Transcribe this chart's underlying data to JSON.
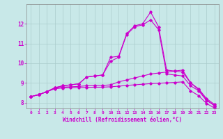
{
  "background_color": "#c8e8e8",
  "plot_bg": "#c8e8e8",
  "line_color": "#cc00cc",
  "grid_color": "#aacccc",
  "xlabel": "Windchill (Refroidissement éolien,°C)",
  "xlabel_color": "#cc00cc",
  "tick_color": "#cc00cc",
  "xlim": [
    -0.5,
    23.5
  ],
  "ylim": [
    7.7,
    13.0
  ],
  "yticks": [
    8,
    9,
    10,
    11,
    12
  ],
  "xticks": [
    0,
    1,
    2,
    3,
    4,
    5,
    6,
    7,
    8,
    9,
    10,
    11,
    12,
    13,
    14,
    15,
    16,
    17,
    18,
    19,
    20,
    21,
    22,
    23
  ],
  "line1": [
    8.3,
    8.4,
    8.55,
    8.75,
    8.85,
    8.9,
    8.95,
    9.3,
    9.35,
    9.4,
    10.3,
    10.35,
    11.5,
    11.9,
    12.0,
    12.6,
    11.85,
    9.65,
    9.6,
    9.55,
    9.0,
    8.7,
    8.2,
    7.9
  ],
  "line2": [
    8.3,
    8.4,
    8.55,
    8.75,
    8.85,
    8.9,
    8.95,
    9.3,
    9.35,
    9.4,
    10.1,
    10.3,
    11.45,
    11.85,
    11.95,
    12.2,
    11.7,
    9.45,
    9.4,
    9.35,
    8.85,
    8.6,
    8.1,
    7.85
  ],
  "line3": [
    8.3,
    8.4,
    8.55,
    8.72,
    8.78,
    8.8,
    8.82,
    8.85,
    8.87,
    8.87,
    8.9,
    9.05,
    9.15,
    9.25,
    9.35,
    9.45,
    9.5,
    9.55,
    9.6,
    9.65,
    9.0,
    8.65,
    8.15,
    7.82
  ],
  "line4": [
    8.3,
    8.4,
    8.55,
    8.7,
    8.74,
    8.75,
    8.76,
    8.77,
    8.78,
    8.78,
    8.8,
    8.83,
    8.87,
    8.9,
    8.93,
    8.96,
    8.98,
    9.0,
    9.02,
    9.05,
    8.6,
    8.35,
    7.95,
    7.72
  ]
}
